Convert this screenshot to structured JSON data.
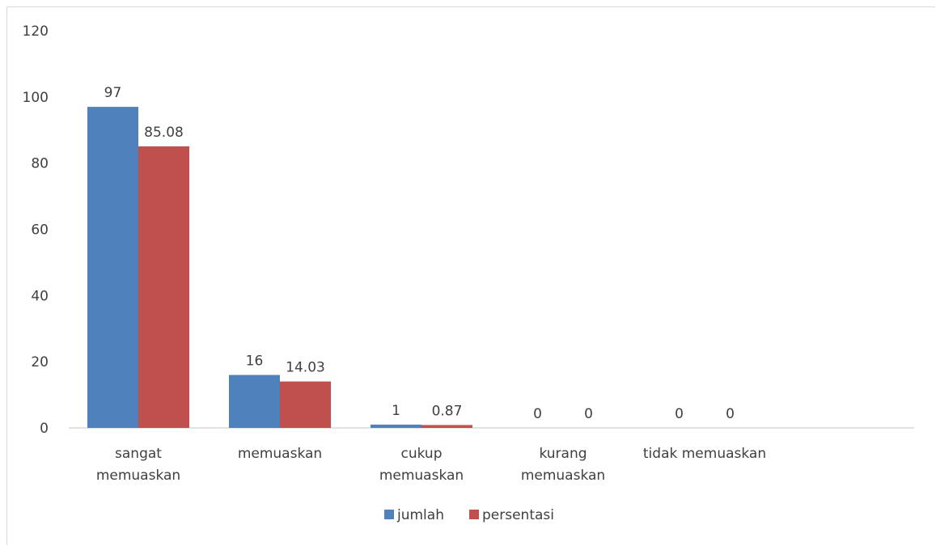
{
  "chart_data": {
    "type": "bar",
    "categories": [
      [
        "sangat",
        "memuaskan"
      ],
      [
        "memuaskan"
      ],
      [
        "cukup",
        "memuaskan"
      ],
      [
        "kurang",
        "memuaskan"
      ],
      [
        "tidak memuaskan"
      ]
    ],
    "series": [
      {
        "name": "jumlah",
        "values": [
          97,
          16,
          1,
          0,
          0
        ],
        "labels": [
          "97",
          "16",
          "1",
          "0",
          "0"
        ],
        "color": "#4f81bd"
      },
      {
        "name": "persentasi",
        "values": [
          85.08,
          14.03,
          0.87,
          0,
          0
        ],
        "labels": [
          "85.08",
          "14.03",
          "0.87",
          "0",
          "0"
        ],
        "color": "#c0504d"
      }
    ],
    "ylim": [
      0,
      120
    ],
    "yticks": [
      "0",
      "20",
      "40",
      "60",
      "80",
      "100",
      "120"
    ],
    "grid": false,
    "legend": "bottom",
    "title": "",
    "xlabel": "",
    "ylabel": ""
  }
}
